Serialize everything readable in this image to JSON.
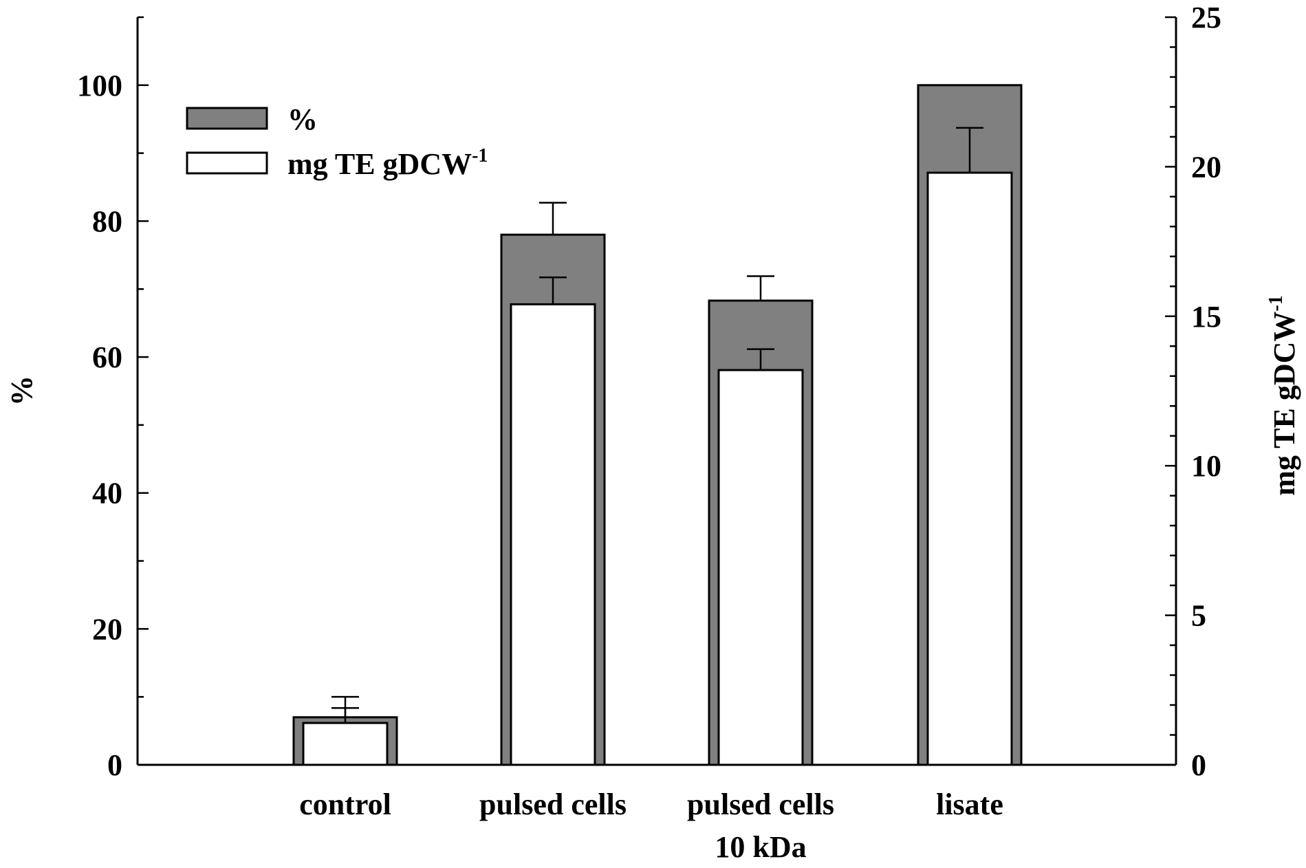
{
  "chart_data": {
    "type": "bar",
    "categories": [
      [
        "control"
      ],
      [
        "pulsed cells"
      ],
      [
        "pulsed cells",
        "10 kDa"
      ],
      [
        "lisate"
      ]
    ],
    "series": [
      {
        "name": "%",
        "axis": "left",
        "color": "#808080",
        "values": [
          7,
          78,
          68.3,
          100
        ],
        "errors": [
          3,
          4.7,
          3.6,
          0
        ]
      },
      {
        "name": "mg TE gDCW",
        "name_superscript": "-1",
        "axis": "right",
        "color": "#ffffff",
        "values": [
          1.4,
          15.4,
          13.2,
          19.8
        ],
        "errors": [
          0.5,
          0.9,
          0.7,
          1.5
        ]
      }
    ],
    "y_left": {
      "label": "%",
      "range": [
        0,
        110
      ],
      "ticks": [
        0,
        20,
        40,
        60,
        80,
        100
      ],
      "minor_step": 10
    },
    "y_right": {
      "label": "mg TE gDCW",
      "label_superscript": "-1",
      "range": [
        0,
        25
      ],
      "ticks": [
        0,
        5,
        10,
        15,
        20,
        25
      ],
      "minor_step": 1
    },
    "legend": {
      "position": "top-left",
      "entries": [
        {
          "label": "%",
          "superscript": "",
          "color": "#808080"
        },
        {
          "label": "mg TE gDCW",
          "superscript": "-1",
          "color": "#ffffff"
        }
      ]
    },
    "grid": false
  }
}
